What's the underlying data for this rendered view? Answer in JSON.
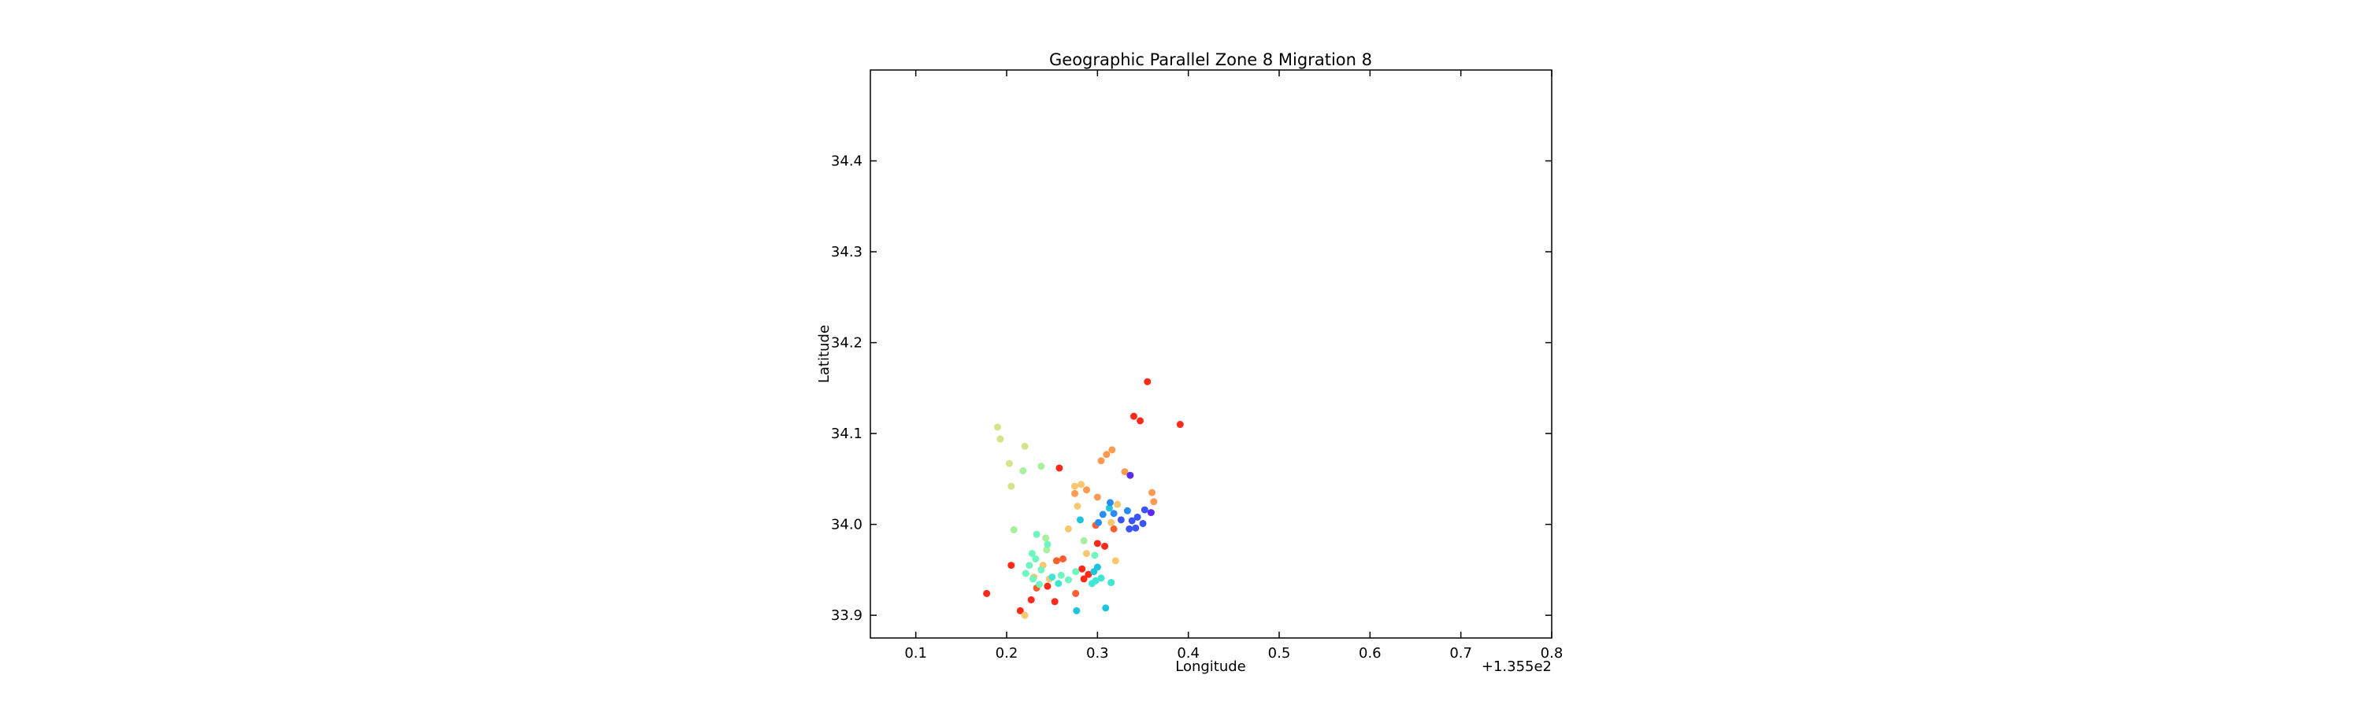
{
  "chart_data": {
    "type": "scatter",
    "title": "Geographic Parallel Zone 8 Migration 8",
    "xlabel": "Longitude",
    "ylabel": "Latitude",
    "x_offset_label": "+1.355e2",
    "xlim": [
      0.05,
      0.8
    ],
    "ylim": [
      33.875,
      34.5
    ],
    "x_ticks": [
      0.1,
      0.2,
      0.3,
      0.4,
      0.5,
      0.6,
      0.7,
      0.8
    ],
    "y_ticks": [
      33.9,
      34.0,
      34.1,
      34.2,
      34.3,
      34.4
    ],
    "x_tick_labels": [
      "0.1",
      "0.2",
      "0.3",
      "0.4",
      "0.5",
      "0.6",
      "0.7",
      "0.8"
    ],
    "y_tick_labels": [
      "33.9",
      "34.0",
      "34.1",
      "34.2",
      "34.3",
      "34.4"
    ],
    "grid": false,
    "colors": [
      "#ff2a1a",
      "#ff5f2e",
      "#ff9a50",
      "#f7c86f",
      "#d6e38a",
      "#a8f0a0",
      "#6ff5c0",
      "#40e6d4",
      "#1ec4dc",
      "#2a8cf0",
      "#3a55ff",
      "#5a2af0"
    ],
    "points": [
      {
        "x": 0.355,
        "y": 34.157,
        "c": 0
      },
      {
        "x": 0.34,
        "y": 34.119,
        "c": 0
      },
      {
        "x": 0.347,
        "y": 34.114,
        "c": 0
      },
      {
        "x": 0.391,
        "y": 34.11,
        "c": 0
      },
      {
        "x": 0.258,
        "y": 34.062,
        "c": 0
      },
      {
        "x": 0.205,
        "y": 33.955,
        "c": 0
      },
      {
        "x": 0.178,
        "y": 33.924,
        "c": 0
      },
      {
        "x": 0.215,
        "y": 33.905,
        "c": 0
      },
      {
        "x": 0.227,
        "y": 33.917,
        "c": 0
      },
      {
        "x": 0.253,
        "y": 33.915,
        "c": 0
      },
      {
        "x": 0.245,
        "y": 33.932,
        "c": 0
      },
      {
        "x": 0.29,
        "y": 33.945,
        "c": 0
      },
      {
        "x": 0.285,
        "y": 33.94,
        "c": 0
      },
      {
        "x": 0.3,
        "y": 33.979,
        "c": 0
      },
      {
        "x": 0.308,
        "y": 33.976,
        "c": 0
      },
      {
        "x": 0.283,
        "y": 33.951,
        "c": 0
      },
      {
        "x": 0.276,
        "y": 33.924,
        "c": 1
      },
      {
        "x": 0.318,
        "y": 33.995,
        "c": 1
      },
      {
        "x": 0.233,
        "y": 33.93,
        "c": 1
      },
      {
        "x": 0.262,
        "y": 33.962,
        "c": 1
      },
      {
        "x": 0.255,
        "y": 33.96,
        "c": 1
      },
      {
        "x": 0.298,
        "y": 33.999,
        "c": 1
      },
      {
        "x": 0.316,
        "y": 34.082,
        "c": 2
      },
      {
        "x": 0.31,
        "y": 34.077,
        "c": 2
      },
      {
        "x": 0.304,
        "y": 34.07,
        "c": 2
      },
      {
        "x": 0.33,
        "y": 34.058,
        "c": 2
      },
      {
        "x": 0.36,
        "y": 34.035,
        "c": 2
      },
      {
        "x": 0.362,
        "y": 34.025,
        "c": 2
      },
      {
        "x": 0.288,
        "y": 34.038,
        "c": 2
      },
      {
        "x": 0.275,
        "y": 34.034,
        "c": 2
      },
      {
        "x": 0.3,
        "y": 34.03,
        "c": 2
      },
      {
        "x": 0.282,
        "y": 34.044,
        "c": 3
      },
      {
        "x": 0.275,
        "y": 34.042,
        "c": 3
      },
      {
        "x": 0.322,
        "y": 34.022,
        "c": 3
      },
      {
        "x": 0.278,
        "y": 34.02,
        "c": 3
      },
      {
        "x": 0.315,
        "y": 34.002,
        "c": 3
      },
      {
        "x": 0.32,
        "y": 33.96,
        "c": 3
      },
      {
        "x": 0.268,
        "y": 33.995,
        "c": 3
      },
      {
        "x": 0.24,
        "y": 33.955,
        "c": 3
      },
      {
        "x": 0.23,
        "y": 33.942,
        "c": 3
      },
      {
        "x": 0.247,
        "y": 33.94,
        "c": 3
      },
      {
        "x": 0.22,
        "y": 33.9,
        "c": 3
      },
      {
        "x": 0.288,
        "y": 33.968,
        "c": 3
      },
      {
        "x": 0.19,
        "y": 34.107,
        "c": 4
      },
      {
        "x": 0.193,
        "y": 34.094,
        "c": 4
      },
      {
        "x": 0.22,
        "y": 34.086,
        "c": 4
      },
      {
        "x": 0.203,
        "y": 34.067,
        "c": 4
      },
      {
        "x": 0.205,
        "y": 34.042,
        "c": 4
      },
      {
        "x": 0.238,
        "y": 34.064,
        "c": 5
      },
      {
        "x": 0.218,
        "y": 34.059,
        "c": 5
      },
      {
        "x": 0.208,
        "y": 33.994,
        "c": 5
      },
      {
        "x": 0.243,
        "y": 33.985,
        "c": 5
      },
      {
        "x": 0.244,
        "y": 33.972,
        "c": 5
      },
      {
        "x": 0.285,
        "y": 33.982,
        "c": 5
      },
      {
        "x": 0.233,
        "y": 33.989,
        "c": 6
      },
      {
        "x": 0.228,
        "y": 33.968,
        "c": 6
      },
      {
        "x": 0.232,
        "y": 33.962,
        "c": 6
      },
      {
        "x": 0.245,
        "y": 33.978,
        "c": 6
      },
      {
        "x": 0.225,
        "y": 33.955,
        "c": 6
      },
      {
        "x": 0.238,
        "y": 33.95,
        "c": 6
      },
      {
        "x": 0.221,
        "y": 33.946,
        "c": 6
      },
      {
        "x": 0.229,
        "y": 33.94,
        "c": 6
      },
      {
        "x": 0.236,
        "y": 33.934,
        "c": 6
      },
      {
        "x": 0.26,
        "y": 33.944,
        "c": 6
      },
      {
        "x": 0.268,
        "y": 33.939,
        "c": 6
      },
      {
        "x": 0.276,
        "y": 33.948,
        "c": 6
      },
      {
        "x": 0.297,
        "y": 33.966,
        "c": 6
      },
      {
        "x": 0.257,
        "y": 33.935,
        "c": 7
      },
      {
        "x": 0.25,
        "y": 33.942,
        "c": 7
      },
      {
        "x": 0.294,
        "y": 33.935,
        "c": 7
      },
      {
        "x": 0.304,
        "y": 33.941,
        "c": 7
      },
      {
        "x": 0.298,
        "y": 33.938,
        "c": 7
      },
      {
        "x": 0.315,
        "y": 33.936,
        "c": 7
      },
      {
        "x": 0.3,
        "y": 33.953,
        "c": 8
      },
      {
        "x": 0.309,
        "y": 33.908,
        "c": 8
      },
      {
        "x": 0.277,
        "y": 33.905,
        "c": 8
      },
      {
        "x": 0.296,
        "y": 33.948,
        "c": 8
      },
      {
        "x": 0.281,
        "y": 34.005,
        "c": 8
      },
      {
        "x": 0.313,
        "y": 34.018,
        "c": 8
      },
      {
        "x": 0.301,
        "y": 34.002,
        "c": 9
      },
      {
        "x": 0.306,
        "y": 34.011,
        "c": 9
      },
      {
        "x": 0.318,
        "y": 34.012,
        "c": 9
      },
      {
        "x": 0.333,
        "y": 34.015,
        "c": 9
      },
      {
        "x": 0.314,
        "y": 34.024,
        "c": 9
      },
      {
        "x": 0.326,
        "y": 34.005,
        "c": 10
      },
      {
        "x": 0.338,
        "y": 34.004,
        "c": 10
      },
      {
        "x": 0.344,
        "y": 34.008,
        "c": 10
      },
      {
        "x": 0.352,
        "y": 34.016,
        "c": 10
      },
      {
        "x": 0.335,
        "y": 33.995,
        "c": 10
      },
      {
        "x": 0.342,
        "y": 33.996,
        "c": 10
      },
      {
        "x": 0.35,
        "y": 34.001,
        "c": 10
      },
      {
        "x": 0.359,
        "y": 34.013,
        "c": 11
      },
      {
        "x": 0.336,
        "y": 34.054,
        "c": 11
      }
    ]
  }
}
